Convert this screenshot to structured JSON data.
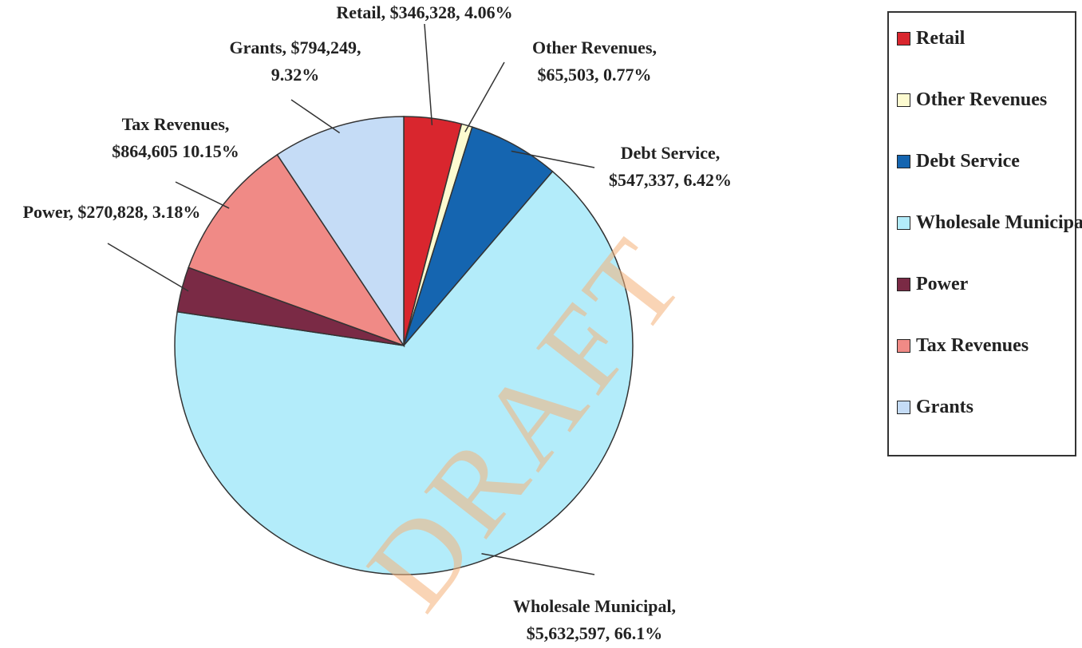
{
  "chart_data": {
    "type": "pie",
    "categories": [
      "Retail",
      "Other Revenues",
      "Debt Service",
      "Wholesale Municipal",
      "Power",
      "Tax Revenues",
      "Grants"
    ],
    "values": [
      346328,
      65503,
      547337,
      5632597,
      270828,
      864605,
      794249
    ],
    "value_labels": [
      [
        "Retail, $346,328, 4.06%"
      ],
      [
        "Other Revenues,",
        "$65,503, 0.77%"
      ],
      [
        "Debt Service,",
        "$547,337, 6.42%"
      ],
      [
        "Wholesale Municipal,",
        "$5,632,597, 66.1%"
      ],
      [
        "Power, $270,828, 3.18%"
      ],
      [
        "Tax Revenues,",
        "$864,605 10.15%"
      ],
      [
        "Grants, $794,249,",
        "9.32%"
      ]
    ],
    "colors": [
      "#d9262e",
      "#fdfbd0",
      "#1565b0",
      "#b3ecfa",
      "#7a2a45",
      "#f08a86",
      "#c5dcf6"
    ],
    "legend": "right",
    "watermark": "DRAFT"
  }
}
